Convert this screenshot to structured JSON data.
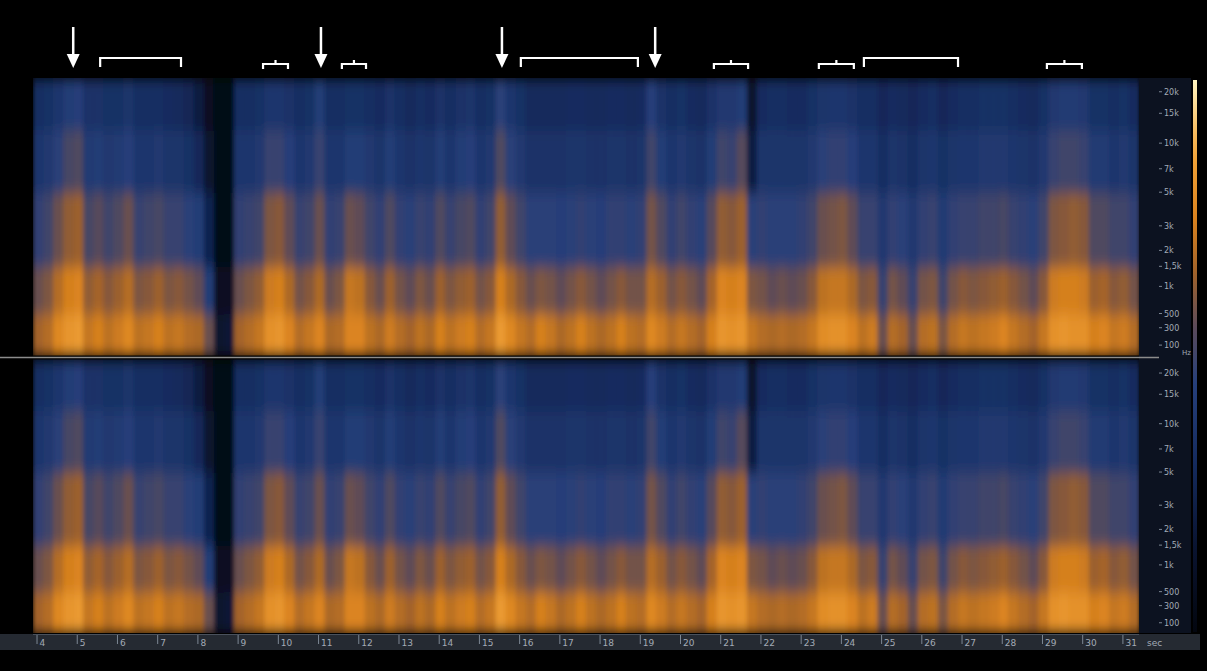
{
  "chart_data": {
    "type": "heatmap",
    "x_label": "sec",
    "y_label": "Hz",
    "xlim": [
      3.9,
      31.4
    ],
    "xticks": [
      4,
      5,
      6,
      7,
      8,
      9,
      10,
      11,
      12,
      13,
      14,
      15,
      16,
      17,
      18,
      19,
      20,
      21,
      22,
      23,
      24,
      25,
      26,
      27,
      28,
      29,
      30,
      31
    ],
    "ylim": [
      0,
      24000
    ],
    "yticks": [
      {
        "value": 20000,
        "label": "20k"
      },
      {
        "value": 15000,
        "label": "15k"
      },
      {
        "value": 10000,
        "label": "10k"
      },
      {
        "value": 7000,
        "label": "7k"
      },
      {
        "value": 5000,
        "label": "5k"
      },
      {
        "value": 3000,
        "label": "3k"
      },
      {
        "value": 2000,
        "label": "2k"
      },
      {
        "value": 1500,
        "label": "1,5k"
      },
      {
        "value": 1000,
        "label": "1k"
      },
      500,
      300,
      100
    ],
    "levels_range": [
      -90,
      -20
    ],
    "x_edges": [
      3.9,
      4.15,
      4.4,
      4.65,
      4.9,
      5.15,
      5.4,
      5.65,
      5.9,
      6.15,
      6.4,
      6.65,
      6.9,
      7.15,
      7.4,
      7.65,
      7.9,
      8.15,
      8.4,
      8.65,
      8.9,
      9.15,
      9.4,
      9.65,
      9.9,
      10.15,
      10.4,
      10.65,
      10.9,
      11.15,
      11.4,
      11.65,
      11.9,
      12.15,
      12.4,
      12.65,
      12.9,
      13.15,
      13.4,
      13.65,
      13.9,
      14.15,
      14.4,
      14.65,
      14.9,
      15.15,
      15.4,
      15.65,
      15.9,
      16.15,
      16.4,
      16.65,
      16.9,
      17.15,
      17.4,
      17.65,
      17.9,
      18.15,
      18.4,
      18.65,
      18.9,
      19.15,
      19.4,
      19.65,
      19.9,
      20.15,
      20.4,
      20.65,
      20.9,
      21.15,
      21.4,
      21.65,
      21.9,
      22.15,
      22.4,
      22.65,
      22.9,
      23.15,
      23.4,
      23.65,
      23.9,
      24.15,
      24.4,
      24.65,
      24.9,
      25.15,
      25.4,
      25.65,
      25.9,
      26.15,
      26.4,
      26.65,
      26.9,
      27.15,
      27.4,
      27.65,
      27.9,
      28.15,
      28.4,
      28.65,
      28.9,
      29.15,
      29.4,
      29.65,
      29.9,
      30.15,
      30.4,
      30.65,
      30.9,
      31.15,
      31.4
    ],
    "y_edges": [
      0,
      500,
      1500,
      5000,
      12000,
      24000
    ],
    "cells": [
      [
        -44,
        -50,
        -57,
        -63,
        -67
      ],
      [
        -42,
        -48,
        -55,
        -62,
        -66
      ],
      [
        -36,
        -42,
        -50,
        -58,
        -63
      ],
      [
        -33,
        -38,
        -46,
        -54,
        -60
      ],
      [
        -32,
        -37,
        -45,
        -53,
        -59
      ],
      [
        -40,
        -46,
        -54,
        -61,
        -65
      ],
      [
        -38,
        -44,
        -52,
        -60,
        -65
      ],
      [
        -41,
        -47,
        -55,
        -62,
        -66
      ],
      [
        -39,
        -45,
        -53,
        -61,
        -66
      ],
      [
        -36,
        -42,
        -50,
        -59,
        -64
      ],
      [
        -41,
        -48,
        -56,
        -63,
        -67
      ],
      [
        -40,
        -47,
        -55,
        -63,
        -67
      ],
      [
        -38,
        -45,
        -54,
        -62,
        -67
      ],
      [
        -41,
        -48,
        -56,
        -64,
        -68
      ],
      [
        -40,
        -47,
        -56,
        -64,
        -69
      ],
      [
        -42,
        -49,
        -58,
        -66,
        -71
      ],
      [
        -43,
        -51,
        -60,
        -70,
        -76
      ],
      [
        -50,
        -60,
        -72,
        -80,
        -84
      ],
      [
        -80,
        -84,
        -87,
        -88,
        -88
      ],
      [
        -78,
        -84,
        -87,
        -88,
        -88
      ],
      [
        -44,
        -50,
        -57,
        -63,
        -67
      ],
      [
        -42,
        -48,
        -56,
        -63,
        -67
      ],
      [
        -40,
        -46,
        -55,
        -62,
        -66
      ],
      [
        -34,
        -39,
        -48,
        -56,
        -63
      ],
      [
        -33,
        -38,
        -47,
        -56,
        -63
      ],
      [
        -37,
        -43,
        -51,
        -59,
        -65
      ],
      [
        -42,
        -49,
        -56,
        -63,
        -67
      ],
      [
        -40,
        -47,
        -55,
        -62,
        -66
      ],
      [
        -37,
        -43,
        -50,
        -56,
        -60
      ],
      [
        -43,
        -50,
        -57,
        -63,
        -67
      ],
      [
        -42,
        -48,
        -56,
        -63,
        -67
      ],
      [
        -37,
        -40,
        -50,
        -60,
        -66
      ],
      [
        -37,
        -41,
        -51,
        -60,
        -66
      ],
      [
        -41,
        -47,
        -55,
        -62,
        -67
      ],
      [
        -43,
        -50,
        -57,
        -64,
        -68
      ],
      [
        -39,
        -45,
        -53,
        -60,
        -65
      ],
      [
        -42,
        -49,
        -57,
        -63,
        -67
      ],
      [
        -44,
        -51,
        -58,
        -65,
        -69
      ],
      [
        -41,
        -48,
        -56,
        -63,
        -67
      ],
      [
        -43,
        -50,
        -57,
        -64,
        -68
      ],
      [
        -38,
        -45,
        -53,
        -60,
        -65
      ],
      [
        -41,
        -48,
        -56,
        -63,
        -67
      ],
      [
        -39,
        -46,
        -54,
        -60,
        -65
      ],
      [
        -38,
        -45,
        -53,
        -59,
        -64
      ],
      [
        -42,
        -49,
        -57,
        -63,
        -67
      ],
      [
        -40,
        -47,
        -55,
        -62,
        -66
      ],
      [
        -32,
        -38,
        -46,
        -53,
        -58
      ],
      [
        -36,
        -43,
        -51,
        -58,
        -63
      ],
      [
        -40,
        -47,
        -55,
        -62,
        -66
      ],
      [
        -42,
        -50,
        -58,
        -65,
        -69
      ],
      [
        -38,
        -48,
        -58,
        -65,
        -69
      ],
      [
        -40,
        -49,
        -58,
        -65,
        -69
      ],
      [
        -43,
        -51,
        -59,
        -65,
        -69
      ],
      [
        -41,
        -49,
        -58,
        -64,
        -68
      ],
      [
        -38,
        -47,
        -57,
        -64,
        -68
      ],
      [
        -41,
        -49,
        -58,
        -65,
        -69
      ],
      [
        -43,
        -51,
        -59,
        -65,
        -69
      ],
      [
        -41,
        -49,
        -57,
        -64,
        -68
      ],
      [
        -38,
        -47,
        -57,
        -64,
        -68
      ],
      [
        -41,
        -49,
        -58,
        -65,
        -69
      ],
      [
        -42,
        -49,
        -57,
        -64,
        -68
      ],
      [
        -36,
        -42,
        -49,
        -55,
        -59
      ],
      [
        -39,
        -45,
        -53,
        -60,
        -65
      ],
      [
        -42,
        -49,
        -57,
        -63,
        -67
      ],
      [
        -40,
        -47,
        -55,
        -62,
        -66
      ],
      [
        -42,
        -49,
        -57,
        -64,
        -68
      ],
      [
        -44,
        -51,
        -58,
        -65,
        -69
      ],
      [
        -38,
        -44,
        -52,
        -60,
        -65
      ],
      [
        -33,
        -37,
        -46,
        -55,
        -62
      ],
      [
        -34,
        -38,
        -47,
        -56,
        -62
      ],
      [
        -33,
        -37,
        -45,
        -52,
        -60
      ],
      [
        -40,
        -48,
        -58,
        -75,
        -80
      ],
      [
        -42,
        -49,
        -57,
        -64,
        -68
      ],
      [
        -43,
        -51,
        -58,
        -64,
        -67
      ],
      [
        -42,
        -50,
        -58,
        -64,
        -67
      ],
      [
        -43,
        -51,
        -58,
        -64,
        -68
      ],
      [
        -42,
        -50,
        -57,
        -64,
        -68
      ],
      [
        -40,
        -47,
        -55,
        -62,
        -66
      ],
      [
        -35,
        -41,
        -50,
        -58,
        -64
      ],
      [
        -34,
        -40,
        -49,
        -57,
        -63
      ],
      [
        -34,
        -40,
        -48,
        -57,
        -63
      ],
      [
        -37,
        -43,
        -51,
        -59,
        -65
      ],
      [
        -41,
        -48,
        -56,
        -63,
        -67
      ],
      [
        -39,
        -47,
        -56,
        -63,
        -67
      ],
      [
        -50,
        -56,
        -62,
        -67,
        -70
      ],
      [
        -42,
        -49,
        -57,
        -64,
        -68
      ],
      [
        -44,
        -51,
        -58,
        -65,
        -69
      ],
      [
        -50,
        -56,
        -62,
        -67,
        -70
      ],
      [
        -42,
        -49,
        -57,
        -64,
        -68
      ],
      [
        -41,
        -48,
        -56,
        -63,
        -67
      ],
      [
        -48,
        -55,
        -61,
        -66,
        -70
      ],
      [
        -42,
        -49,
        -57,
        -64,
        -68
      ],
      [
        -40,
        -47,
        -56,
        -63,
        -67
      ],
      [
        -41,
        -48,
        -56,
        -63,
        -67
      ],
      [
        -40,
        -47,
        -55,
        -62,
        -66
      ],
      [
        -39,
        -46,
        -55,
        -62,
        -66
      ],
      [
        -37,
        -45,
        -54,
        -62,
        -66
      ],
      [
        -40,
        -47,
        -56,
        -63,
        -67
      ],
      [
        -42,
        -49,
        -57,
        -64,
        -68
      ],
      [
        -44,
        -51,
        -58,
        -65,
        -69
      ],
      [
        -40,
        -47,
        -55,
        -62,
        -66
      ],
      [
        -34,
        -39,
        -48,
        -56,
        -62
      ],
      [
        -33,
        -38,
        -47,
        -55,
        -61
      ],
      [
        -34,
        -38,
        -46,
        -55,
        -61
      ],
      [
        -34,
        -39,
        -47,
        -56,
        -62
      ],
      [
        -38,
        -45,
        -53,
        -61,
        -66
      ],
      [
        -37,
        -44,
        -53,
        -61,
        -66
      ],
      [
        -40,
        -47,
        -55,
        -63,
        -67
      ],
      [
        -39,
        -46,
        -55,
        -62,
        -66
      ],
      [
        -42,
        -49,
        -57,
        -64,
        -68
      ]
    ],
    "arrows": [
      4.9,
      11.06,
      15.56,
      19.37
    ],
    "brackets": [
      [
        5.57,
        7.58
      ],
      [
        9.62,
        10.24
      ],
      [
        11.58,
        12.18
      ],
      [
        16.03,
        18.94
      ],
      [
        20.83,
        21.68
      ],
      [
        23.44,
        24.31
      ],
      [
        24.56,
        26.9
      ],
      [
        29.11,
        29.98
      ]
    ]
  }
}
